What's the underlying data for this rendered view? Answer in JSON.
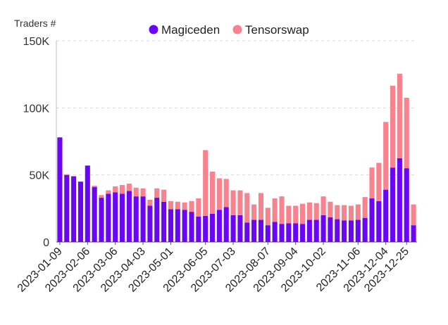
{
  "chart_data": {
    "type": "bar",
    "stacked": true,
    "title": "",
    "ylabel": "Traders #",
    "xlabel": "",
    "ylim": [
      0,
      150000
    ],
    "yticks": [
      0,
      50000,
      100000,
      150000
    ],
    "ytick_labels": [
      "0",
      "50K",
      "100K",
      "150K"
    ],
    "grid": "horizontal-dashed",
    "legend_position": "top-center",
    "x_tick_labels": [
      "2023-01-09",
      "2023-02-06",
      "2023-03-06",
      "2023-04-03",
      "2023-05-01",
      "2023-06-05",
      "2023-07-03",
      "2023-08-07",
      "2023-09-04",
      "2023-10-02",
      "2023-11-06",
      "2023-12-04",
      "2023-12-25"
    ],
    "x_tick_indices": [
      0,
      4,
      8,
      12,
      16,
      21,
      25,
      30,
      34,
      38,
      43,
      47,
      50
    ],
    "series": [
      {
        "name": "Magiceden",
        "color": "#6a06f5",
        "values": [
          78000,
          50000,
          49000,
          45000,
          57000,
          41000,
          33000,
          36000,
          37000,
          36000,
          38000,
          34000,
          34000,
          27000,
          33000,
          30000,
          24500,
          24500,
          24000,
          22500,
          19000,
          19500,
          21000,
          24000,
          26000,
          20000,
          20000,
          14500,
          16500,
          16500,
          12500,
          15000,
          13500,
          14000,
          14000,
          13500,
          16500,
          16500,
          20000,
          18500,
          17000,
          16000,
          16000,
          16500,
          18000,
          32500,
          30500,
          39000,
          55500,
          62500,
          55000,
          12500
        ]
      },
      {
        "name": "Tensorswap",
        "color": "#f7838f",
        "values": [
          0,
          500,
          0,
          0,
          0,
          1000,
          2000,
          2500,
          4500,
          6500,
          5500,
          6500,
          6000,
          4500,
          7000,
          9000,
          6000,
          5500,
          5500,
          8000,
          13500,
          49000,
          31500,
          23500,
          21000,
          18500,
          18500,
          22000,
          11500,
          20000,
          13000,
          17500,
          20500,
          13000,
          13000,
          15000,
          13000,
          12500,
          14000,
          11500,
          10500,
          11500,
          11000,
          11500,
          15500,
          23000,
          28500,
          50500,
          61000,
          63000,
          52500,
          15500
        ]
      }
    ]
  }
}
